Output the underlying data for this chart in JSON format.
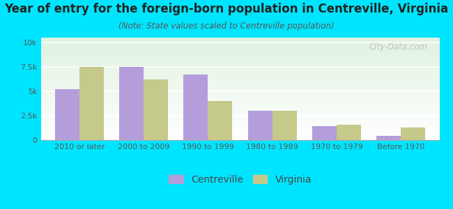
{
  "title": "Year of entry for the foreign-born population in Centreville, Virginia",
  "subtitle": "(Note: State values scaled to Centreville population)",
  "categories": [
    "2010 or later",
    "2000 to 2009",
    "1990 to 1999",
    "1980 to 1989",
    "1970 to 1979",
    "Before 1970"
  ],
  "centreville_values": [
    5200,
    7500,
    6700,
    3000,
    1400,
    450
  ],
  "virginia_values": [
    7500,
    6200,
    4000,
    3000,
    1600,
    1300
  ],
  "centreville_color": "#b39ddb",
  "virginia_color": "#c5c98a",
  "background_outer": "#00e5ff",
  "yticks": [
    0,
    2500,
    5000,
    7500,
    10000
  ],
  "ytick_labels": [
    "0",
    "2.5k",
    "5k",
    "7.5k",
    "10k"
  ],
  "ylim": [
    0,
    10500
  ],
  "watermark": "City-Data.com",
  "title_fontsize": 12,
  "subtitle_fontsize": 8.5,
  "legend_fontsize": 10,
  "bar_width": 0.38
}
